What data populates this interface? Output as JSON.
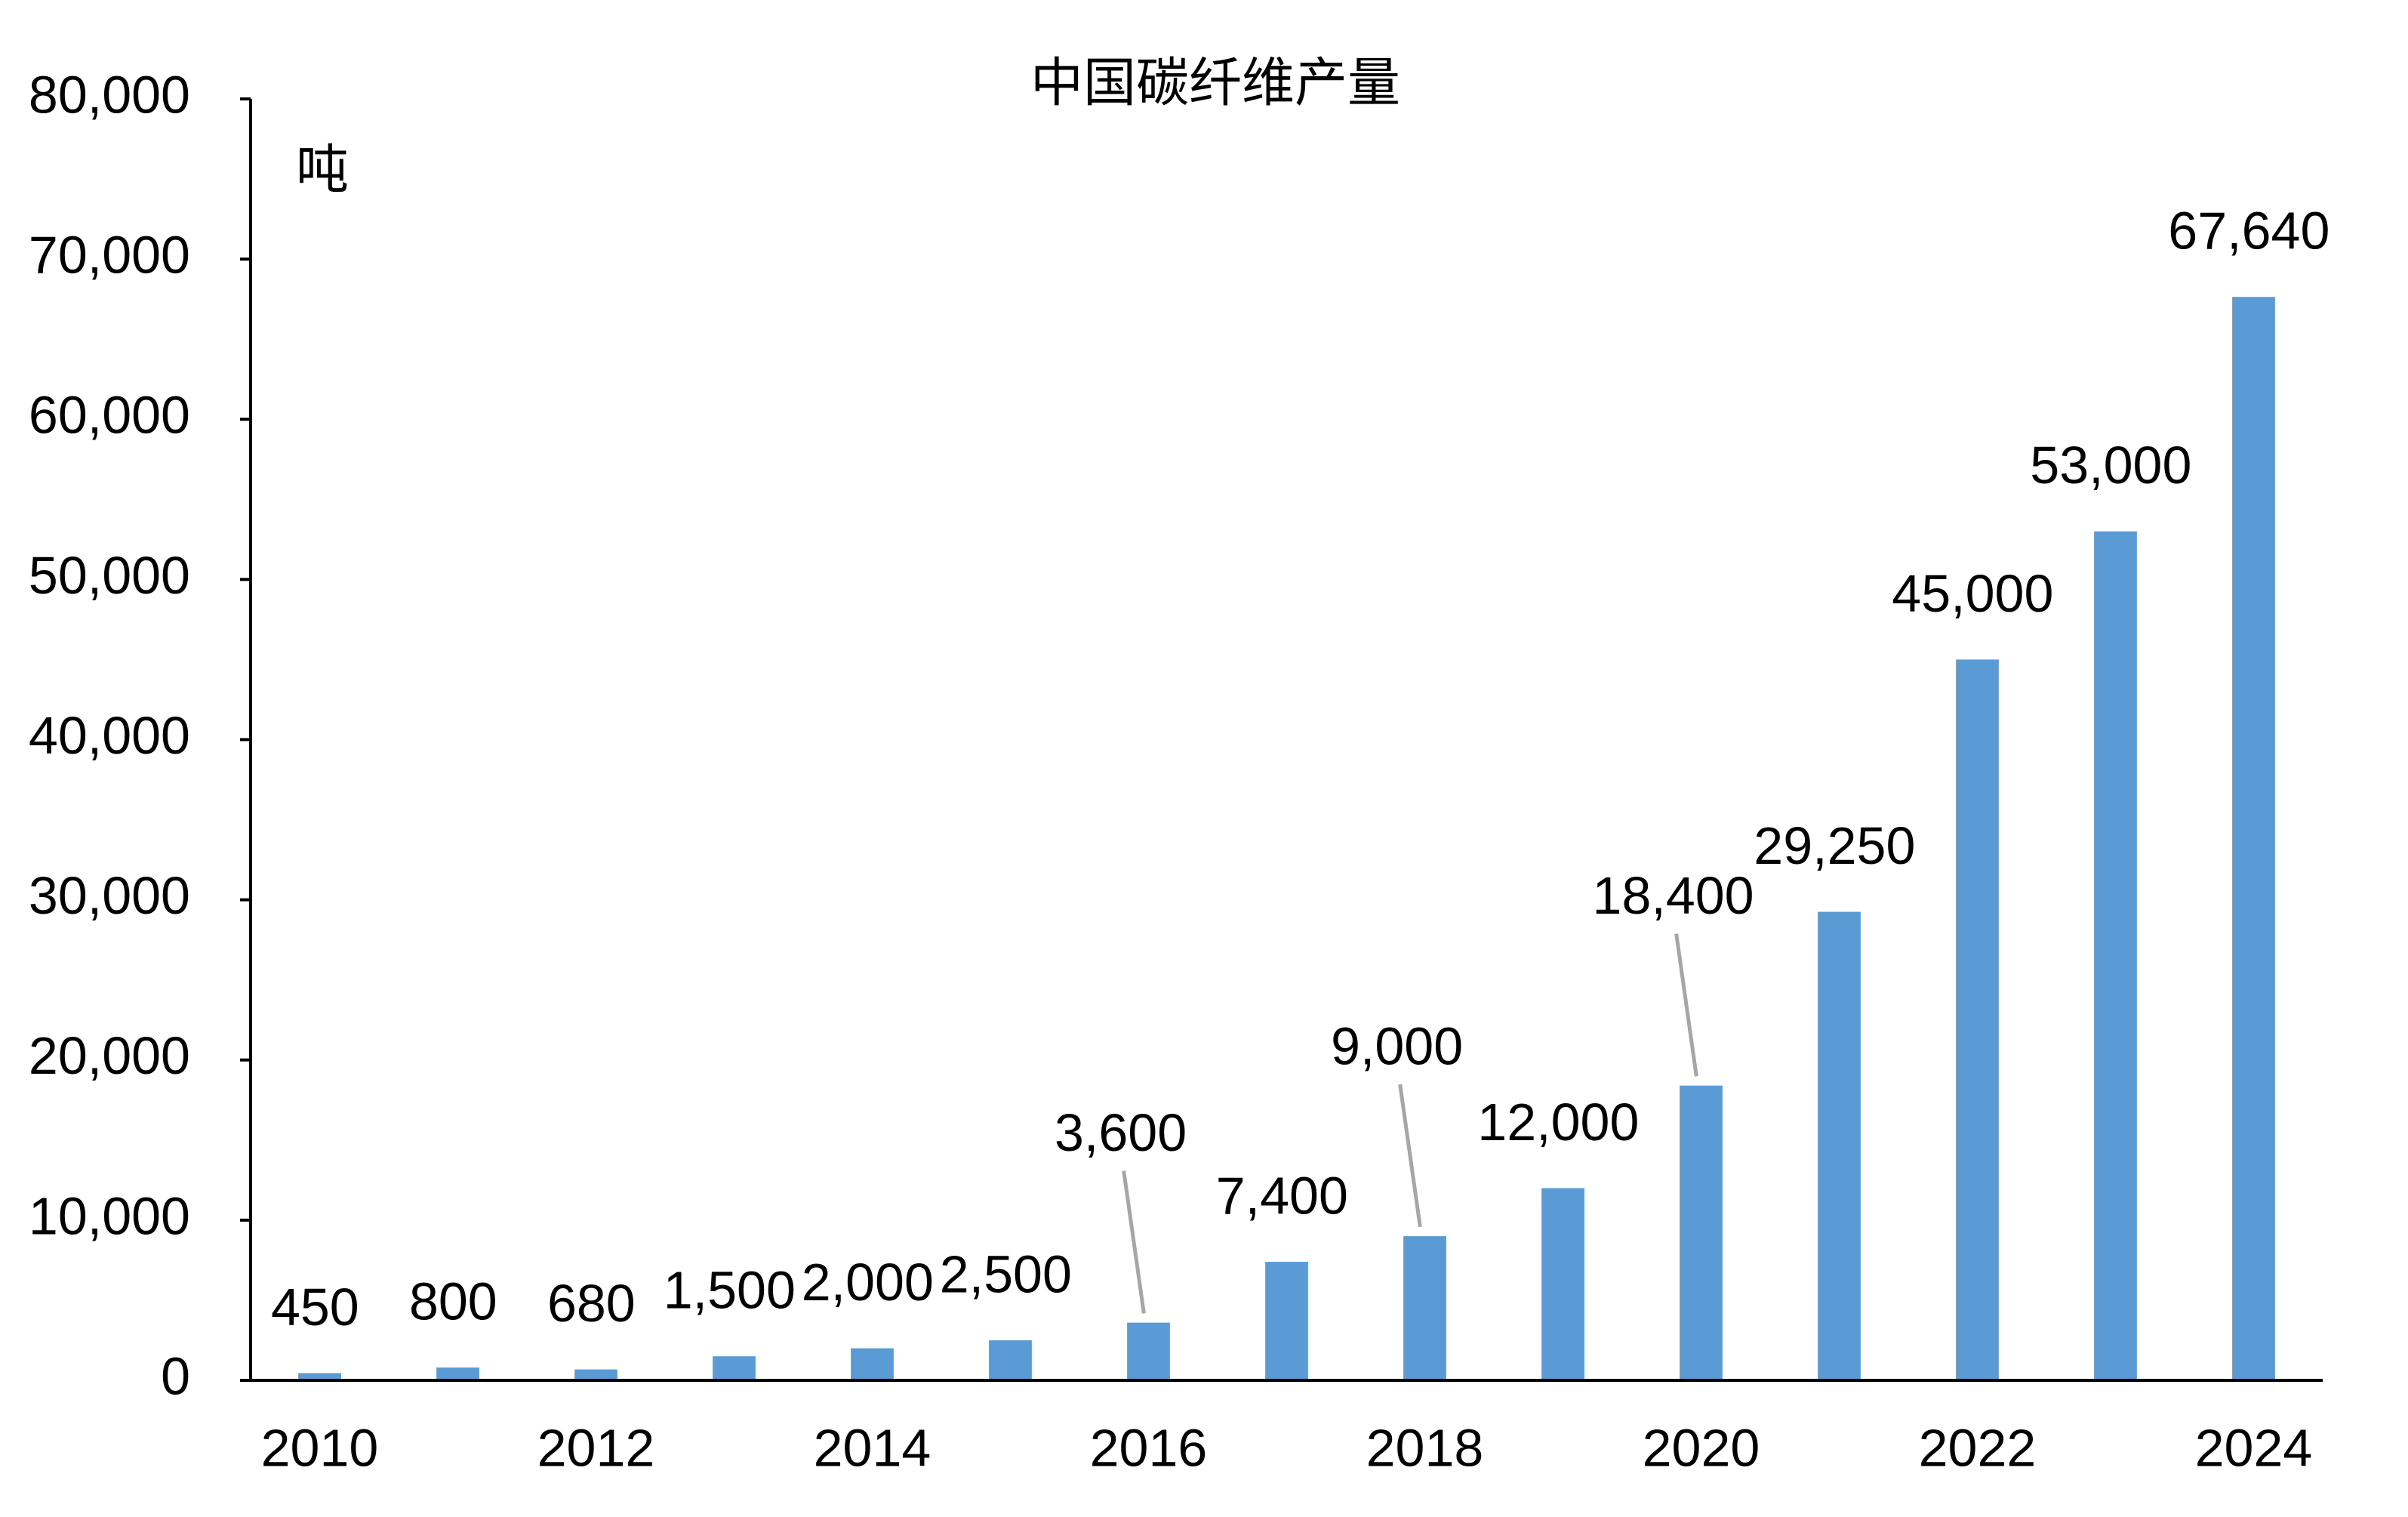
{
  "chart_data": {
    "type": "bar",
    "title": "中国碳纤维产量",
    "unit": "吨",
    "categories": [
      "2010",
      null,
      "2012",
      null,
      "2014",
      null,
      "2016",
      null,
      "2018",
      null,
      "2020",
      null,
      "2022",
      null,
      "2024"
    ],
    "values": [
      450,
      800,
      680,
      1500,
      2000,
      2500,
      3600,
      7400,
      9000,
      12000,
      18400,
      29250,
      45000,
      53000,
      67640
    ],
    "value_labels": [
      "450",
      "800",
      "680",
      "1,500",
      "2,000",
      "2,500",
      "3,600",
      "7,400",
      "9,000",
      "12,000",
      "18,400",
      "29,250",
      "45,000",
      "53,000",
      "67,640"
    ],
    "color": "#5b9bd5",
    "ylim": [
      0,
      80000
    ],
    "yticks": [
      0,
      {
        "value": 10000,
        "label": "10,000"
      },
      {
        "value": 20000,
        "label": "20,000"
      },
      {
        "value": 30000,
        "label": "30,000"
      },
      {
        "value": 40000,
        "label": "40,000"
      },
      {
        "value": 50000,
        "label": "50,000"
      },
      {
        "value": 60000,
        "label": "60,000"
      },
      {
        "value": 70000,
        "label": "70,000"
      },
      {
        "value": 80000,
        "label": "80,000"
      }
    ],
    "grid": false
  }
}
